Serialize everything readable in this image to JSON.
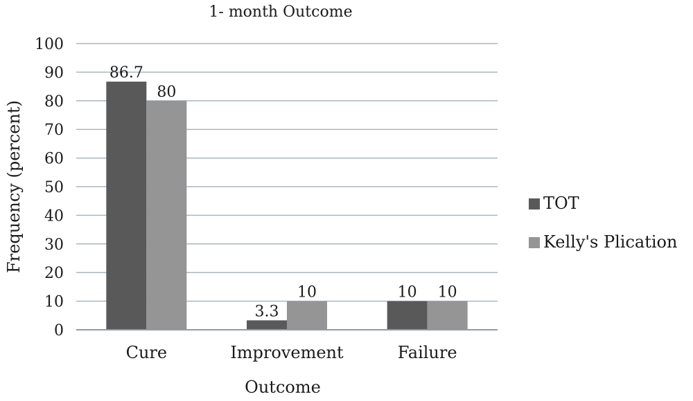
{
  "chart_data": {
    "type": "bar",
    "title": "1- month Outcome",
    "xlabel": "Outcome",
    "ylabel": "Frequency (percent)",
    "categories": [
      "Cure",
      "Improvement",
      "Failure"
    ],
    "ylim": [
      0,
      100
    ],
    "yticks": [
      "0",
      "10",
      "20",
      "30",
      "40",
      "50",
      "60",
      "70",
      "80",
      "90",
      "100"
    ],
    "grid": true,
    "legend_position": "right",
    "series": [
      {
        "name": "TOT",
        "color": "#595959",
        "values": [
          86.7,
          3.3,
          10
        ],
        "labels": [
          "86.7",
          "3.3",
          "10"
        ]
      },
      {
        "name": "Kelly's Plication",
        "color": "#959595",
        "values": [
          80,
          10,
          10
        ],
        "labels": [
          "80",
          "10",
          "10"
        ]
      }
    ]
  }
}
